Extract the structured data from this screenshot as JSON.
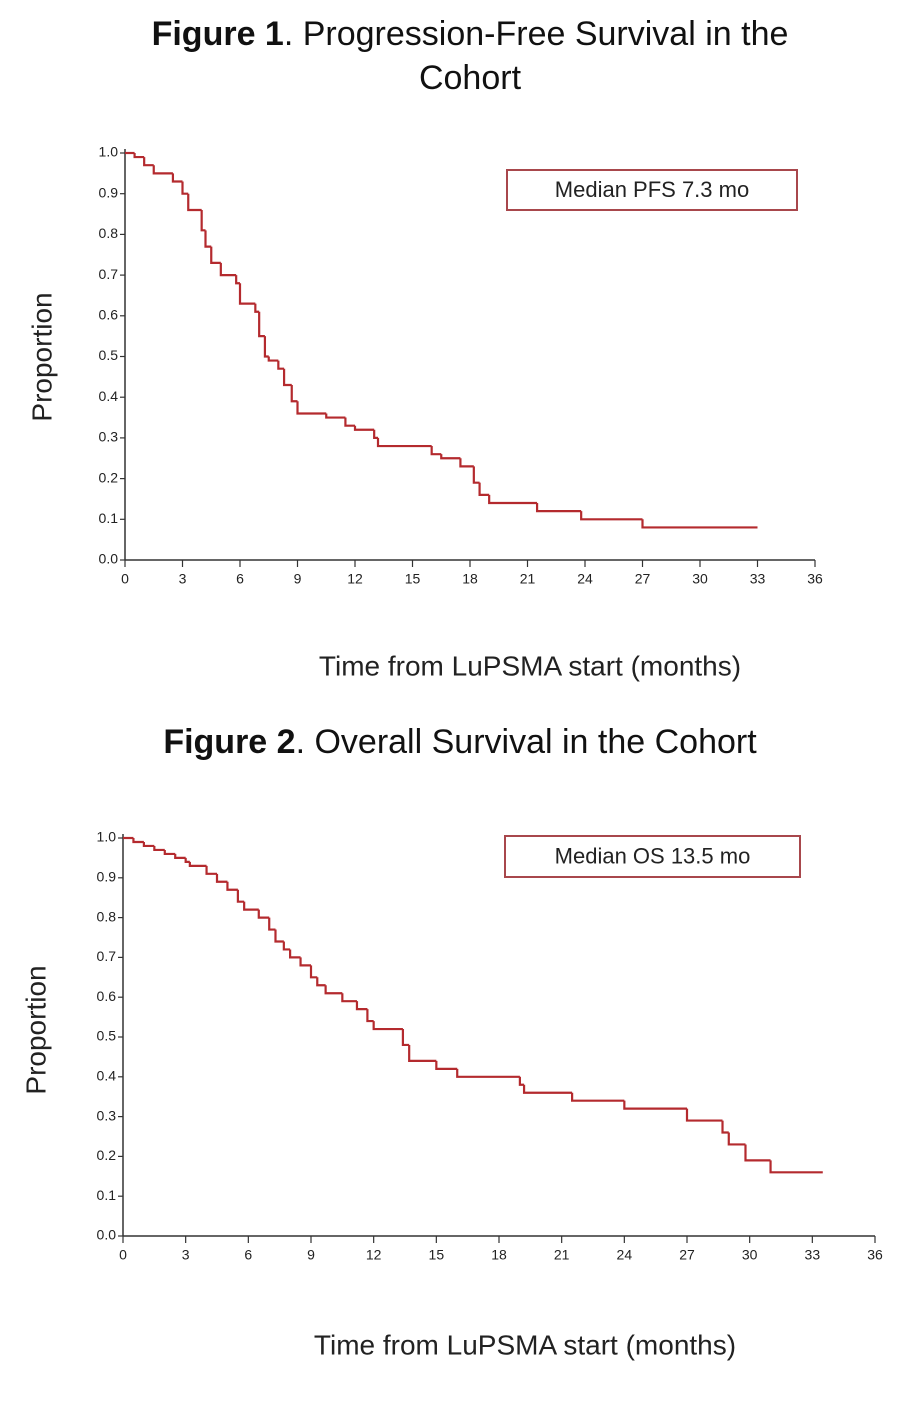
{
  "chart_data": [
    {
      "type": "step",
      "title_bold": "Figure 1",
      "title": ". Progression-Free Survival in the Cohort",
      "annotation": "Median PFS 7.3 mo",
      "x_label": "Time from LuPSMA start (months)",
      "y_label": "Proportion",
      "color": "#b42a2e",
      "xlim": [
        0,
        36
      ],
      "ylim": [
        0,
        1
      ],
      "xticks": [
        0,
        3,
        6,
        9,
        12,
        15,
        18,
        21,
        24,
        27,
        30,
        33,
        36
      ],
      "yticks": [
        {
          "value": 0,
          "label": "0.0"
        },
        0.1,
        0.2,
        0.3,
        0.4,
        0.5,
        0.6,
        0.7,
        0.8,
        0.9,
        {
          "value": 1,
          "label": "1.0"
        }
      ],
      "x": [
        0,
        0.5,
        1,
        1.5,
        2.5,
        3,
        3.3,
        4,
        4.2,
        4.5,
        5,
        5.8,
        6,
        6.8,
        7,
        7.3,
        7.5,
        8,
        8.3,
        8.7,
        9,
        10.5,
        11.5,
        12,
        13,
        13.2,
        16,
        16.5,
        17.5,
        18.2,
        18.5,
        19,
        21.5,
        23.8,
        27,
        33
      ],
      "values": [
        1.0,
        0.99,
        0.97,
        0.95,
        0.93,
        0.9,
        0.86,
        0.81,
        0.77,
        0.73,
        0.7,
        0.68,
        0.63,
        0.61,
        0.55,
        0.5,
        0.49,
        0.47,
        0.43,
        0.39,
        0.36,
        0.35,
        0.33,
        0.32,
        0.3,
        0.28,
        0.26,
        0.25,
        0.23,
        0.19,
        0.16,
        0.14,
        0.12,
        0.1,
        0.08,
        0.08
      ]
    },
    {
      "type": "step",
      "title_bold": "Figure 2",
      "title": ". Overall Survival in the Cohort",
      "annotation": "Median OS 13.5 mo",
      "x_label": "Time from LuPSMA start (months)",
      "y_label": "Proportion",
      "color": "#b42a2e",
      "xlim": [
        0,
        36
      ],
      "ylim": [
        0,
        1
      ],
      "xticks": [
        0,
        3,
        6,
        9,
        12,
        15,
        18,
        21,
        24,
        27,
        30,
        33,
        36
      ],
      "yticks": [
        {
          "value": 0,
          "label": "0.0"
        },
        0.1,
        0.2,
        0.3,
        0.4,
        0.5,
        0.6,
        0.7,
        0.8,
        0.9,
        {
          "value": 1,
          "label": "1.0"
        }
      ],
      "x": [
        0,
        0.5,
        1,
        1.5,
        2,
        2.5,
        3,
        3.2,
        4,
        4.5,
        5,
        5.5,
        5.8,
        6.5,
        7,
        7.3,
        7.7,
        8,
        8.5,
        9,
        9.3,
        9.7,
        10.5,
        11.2,
        11.7,
        12,
        13.4,
        13.7,
        15,
        16,
        19,
        19.2,
        21.5,
        24,
        27,
        28.7,
        29,
        29.8,
        31,
        33.5
      ],
      "values": [
        1.0,
        0.99,
        0.98,
        0.97,
        0.96,
        0.95,
        0.94,
        0.93,
        0.91,
        0.89,
        0.87,
        0.84,
        0.82,
        0.8,
        0.77,
        0.74,
        0.72,
        0.7,
        0.68,
        0.65,
        0.63,
        0.61,
        0.59,
        0.57,
        0.54,
        0.52,
        0.48,
        0.44,
        0.42,
        0.4,
        0.38,
        0.36,
        0.34,
        0.32,
        0.29,
        0.26,
        0.23,
        0.19,
        0.16,
        0.16
      ]
    }
  ]
}
